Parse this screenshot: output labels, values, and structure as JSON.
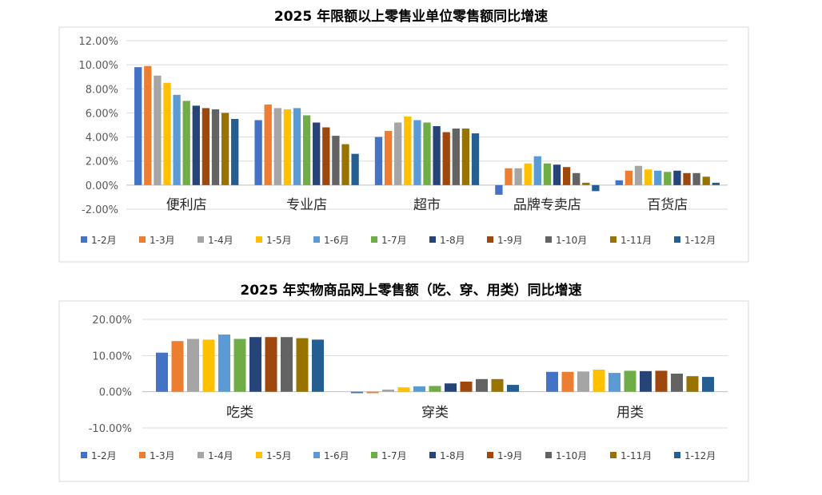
{
  "chart_data": [
    {
      "type": "bar",
      "title": "2025 年限额以上零售业单位零售额同比增速",
      "categories": [
        "便利店",
        "专业店",
        "超市",
        "品牌专卖店",
        "百货店"
      ],
      "ylim": [
        -2,
        12
      ],
      "yticks": [
        "-2.00%",
        "0.00%",
        "2.00%",
        "4.00%",
        "6.00%",
        "8.00%",
        "10.00%",
        "12.00%"
      ],
      "grid": true,
      "legend_position": "bottom",
      "series": [
        {
          "name": "1-2月",
          "color": "#4472C4",
          "values": [
            9.8,
            5.4,
            4.0,
            -0.8,
            0.4
          ]
        },
        {
          "name": "1-3月",
          "color": "#ED7D31",
          "values": [
            9.9,
            6.7,
            4.5,
            1.4,
            1.2
          ]
        },
        {
          "name": "1-4月",
          "color": "#A5A5A5",
          "values": [
            9.1,
            6.4,
            5.2,
            1.4,
            1.6
          ]
        },
        {
          "name": "1-5月",
          "color": "#FFC000",
          "values": [
            8.5,
            6.3,
            5.7,
            1.8,
            1.3
          ]
        },
        {
          "name": "1-6月",
          "color": "#5B9BD5",
          "values": [
            7.5,
            6.4,
            5.4,
            2.4,
            1.2
          ]
        },
        {
          "name": "1-7月",
          "color": "#70AD47",
          "values": [
            7.0,
            5.8,
            5.2,
            1.8,
            1.1
          ]
        },
        {
          "name": "1-8月",
          "color": "#264478",
          "values": [
            6.6,
            5.2,
            4.9,
            1.7,
            1.2
          ]
        },
        {
          "name": "1-9月",
          "color": "#9E480E",
          "values": [
            6.4,
            4.8,
            4.4,
            1.5,
            1.0
          ]
        },
        {
          "name": "1-10月",
          "color": "#636363",
          "values": [
            6.3,
            4.1,
            4.7,
            1.0,
            1.0
          ]
        },
        {
          "name": "1-11月",
          "color": "#997300",
          "values": [
            6.0,
            3.4,
            4.7,
            0.2,
            0.7
          ]
        },
        {
          "name": "1-12月",
          "color": "#255E91",
          "values": [
            5.5,
            2.6,
            4.3,
            -0.5,
            0.2
          ]
        }
      ]
    },
    {
      "type": "bar",
      "title": "2025 年实物商品网上零售额（吃、穿、用类）同比增速",
      "categories": [
        "吃类",
        "穿类",
        "用类"
      ],
      "ylim": [
        -10,
        20
      ],
      "yticks": [
        "-10.00%",
        "0.00%",
        "10.00%",
        "20.00%"
      ],
      "grid": true,
      "legend_position": "bottom",
      "series": [
        {
          "name": "1-2月",
          "color": "#4472C4",
          "values": [
            10.8,
            -0.4,
            5.5
          ]
        },
        {
          "name": "1-3月",
          "color": "#ED7D31",
          "values": [
            14.0,
            -0.4,
            5.5
          ]
        },
        {
          "name": "1-4月",
          "color": "#A5A5A5",
          "values": [
            14.6,
            0.6,
            5.6
          ]
        },
        {
          "name": "1-5月",
          "color": "#FFC000",
          "values": [
            14.4,
            1.2,
            6.1
          ]
        },
        {
          "name": "1-6月",
          "color": "#5B9BD5",
          "values": [
            15.8,
            1.5,
            5.2
          ]
        },
        {
          "name": "1-7月",
          "color": "#70AD47",
          "values": [
            14.6,
            1.6,
            5.8
          ]
        },
        {
          "name": "1-8月",
          "color": "#264478",
          "values": [
            15.1,
            2.3,
            5.7
          ]
        },
        {
          "name": "1-9月",
          "color": "#9E480E",
          "values": [
            15.1,
            2.8,
            5.8
          ]
        },
        {
          "name": "1-10月",
          "color": "#636363",
          "values": [
            15.1,
            3.5,
            5.0
          ]
        },
        {
          "name": "1-11月",
          "color": "#997300",
          "values": [
            14.8,
            3.5,
            4.3
          ]
        },
        {
          "name": "1-12月",
          "color": "#255E91",
          "values": [
            14.4,
            1.9,
            4.1
          ]
        }
      ]
    }
  ]
}
